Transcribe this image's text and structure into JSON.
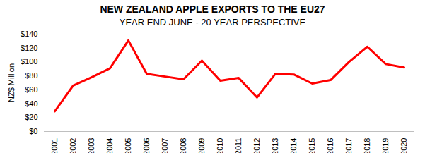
{
  "chart_data": {
    "type": "line",
    "title": "NEW ZEALAND APPLE EXPORTS TO THE EU27",
    "subtitle": "YEAR END JUNE - 20 YEAR PERSPECTIVE",
    "y_label": "NZ$ Million",
    "categories": [
      "2001",
      "2002",
      "2003",
      "2004",
      "2005",
      "2006",
      "2007",
      "2008",
      "2009",
      "2010",
      "2011",
      "2012",
      "2013",
      "2014",
      "2015",
      "2016",
      "2017",
      "2018",
      "2019",
      "2020"
    ],
    "values": [
      29,
      66,
      78,
      91,
      131,
      83,
      79,
      75,
      102,
      73,
      77,
      49,
      83,
      82,
      69,
      74,
      100,
      122,
      97,
      92
    ],
    "color": "#ff0000",
    "ylim": [
      0,
      140
    ],
    "yticks": [
      {
        "value": 0,
        "label": "$0"
      },
      {
        "value": 20,
        "label": "$20"
      },
      {
        "value": 40,
        "label": "$40"
      },
      {
        "value": 60,
        "label": "$60"
      },
      {
        "value": 80,
        "label": "$80"
      },
      {
        "value": 100,
        "label": "$100"
      },
      {
        "value": 120,
        "label": "$120"
      },
      {
        "value": 140,
        "label": "$140"
      }
    ],
    "grid": false
  }
}
